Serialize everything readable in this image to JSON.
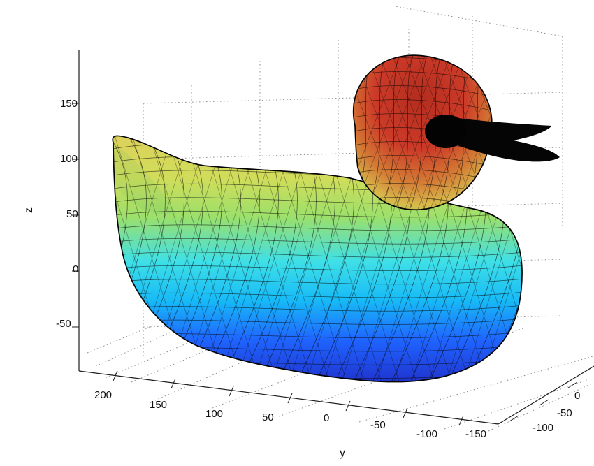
{
  "figure": {
    "axes": {
      "z": {
        "label": "z",
        "ticks": [
          "150",
          "100",
          "50",
          "0",
          "-50"
        ]
      },
      "y": {
        "label": "y",
        "ticks": [
          "200",
          "150",
          "100",
          "50",
          "0",
          "-50",
          "-100",
          "-150"
        ]
      },
      "x": {
        "label": "",
        "ticks": [
          "0",
          "-50",
          "-100"
        ]
      }
    },
    "surface": {
      "subject": "duck",
      "colormap": [
        "#1f2fd0",
        "#1f8fff",
        "#36d7f2",
        "#9ee16c",
        "#e7c84d",
        "#c9372c"
      ]
    }
  }
}
